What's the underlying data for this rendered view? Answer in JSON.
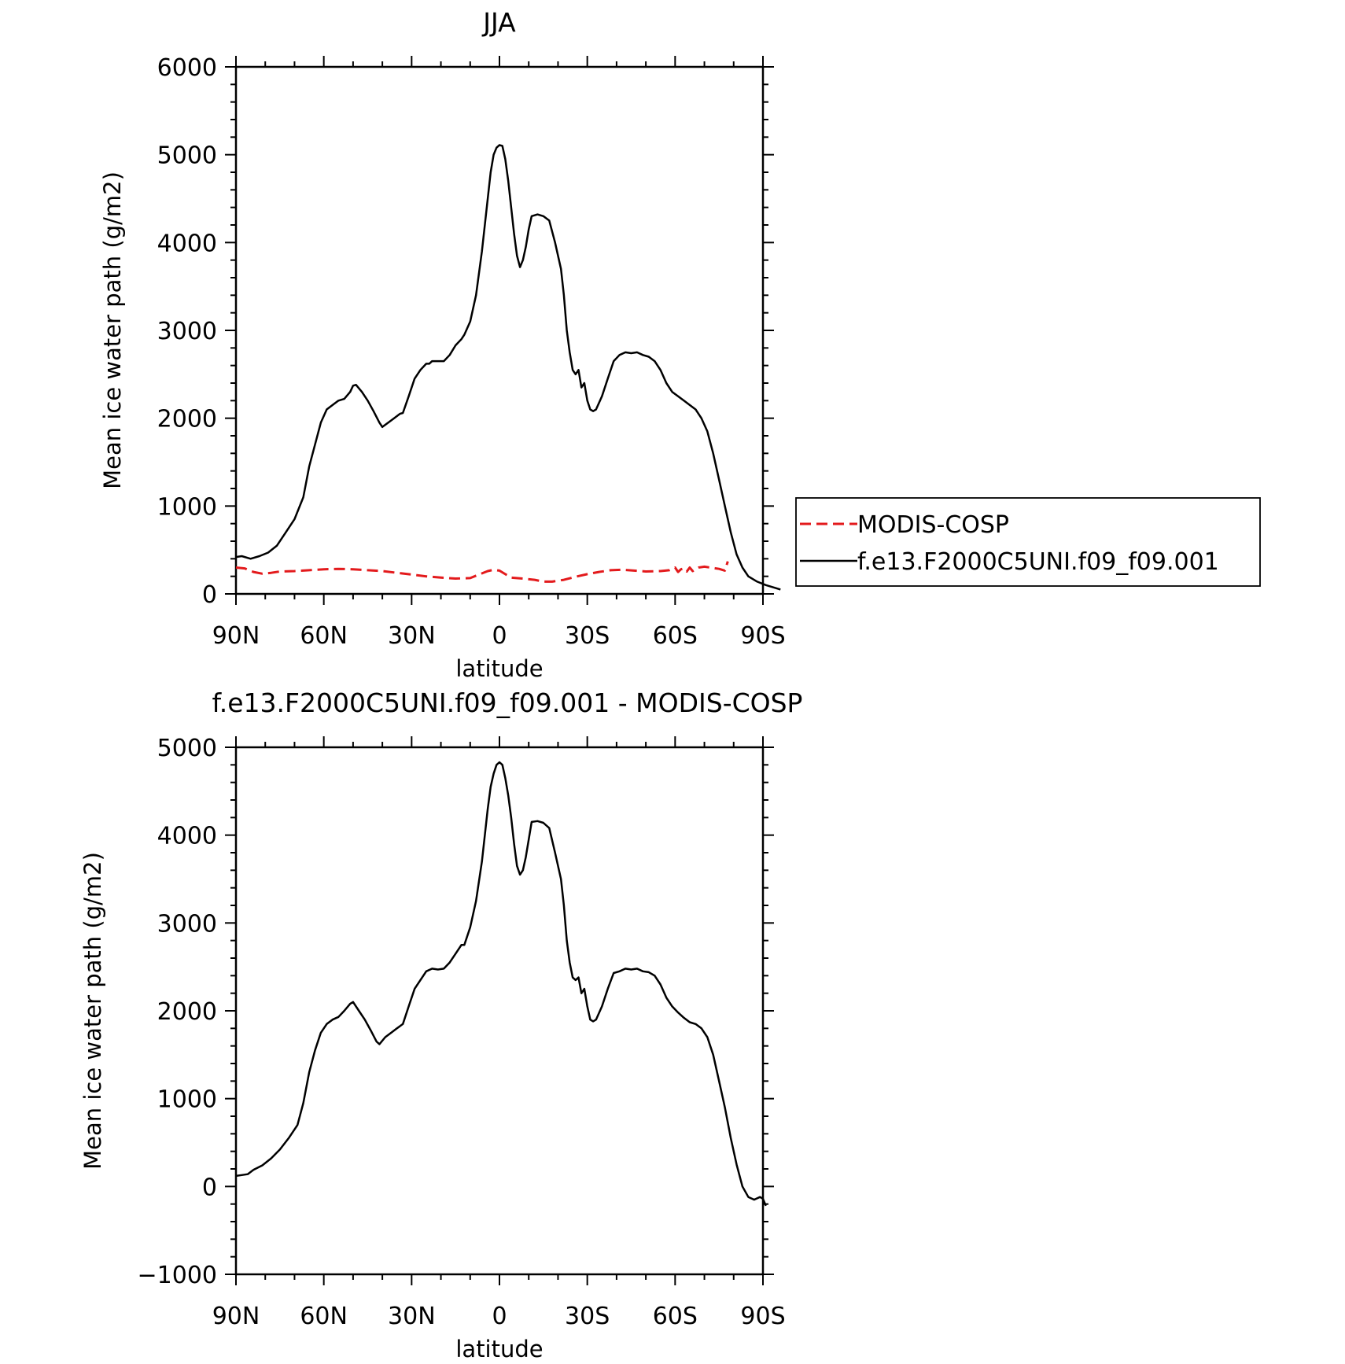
{
  "chart_data": [
    {
      "type": "line",
      "title": "JJA",
      "xlabel": "latitude",
      "ylabel": "Mean ice water path (g/m2)",
      "xlim": [
        90,
        -90
      ],
      "ylim": [
        0,
        6000
      ],
      "x_ticks": [
        90,
        60,
        30,
        0,
        -30,
        -60,
        -90
      ],
      "x_tick_labels": [
        "90N",
        "60N",
        "30N",
        "0",
        "30S",
        "60S",
        "90S"
      ],
      "y_ticks": [
        0,
        1000,
        2000,
        3000,
        4000,
        5000,
        6000
      ],
      "y_tick_labels": [
        "0",
        "1000",
        "2000",
        "3000",
        "4000",
        "5000",
        "6000"
      ],
      "grid": false,
      "legend": "outside-right",
      "series": [
        {
          "name": "MODIS-COSP",
          "color": "#e31a1c",
          "dash": true,
          "points": [
            [
              90,
              300
            ],
            [
              87,
              290
            ],
            [
              84,
              250
            ],
            [
              81,
              230
            ],
            [
              78,
              240
            ],
            [
              75,
              255
            ],
            [
              70,
              260
            ],
            [
              65,
              270
            ],
            [
              60,
              280
            ],
            [
              55,
              285
            ],
            [
              50,
              280
            ],
            [
              45,
              270
            ],
            [
              40,
              260
            ],
            [
              35,
              240
            ],
            [
              30,
              220
            ],
            [
              25,
              200
            ],
            [
              20,
              185
            ],
            [
              15,
              175
            ],
            [
              10,
              180
            ],
            [
              7,
              220
            ],
            [
              4,
              260
            ],
            [
              2,
              275
            ],
            [
              0,
              265
            ],
            [
              -2,
              225
            ],
            [
              -4,
              185
            ],
            [
              -8,
              175
            ],
            [
              -12,
              160
            ],
            [
              -15,
              140
            ],
            [
              -18,
              140
            ],
            [
              -22,
              160
            ],
            [
              -26,
              195
            ],
            [
              -30,
              225
            ],
            [
              -34,
              250
            ],
            [
              -38,
              270
            ],
            [
              -42,
              275
            ],
            [
              -46,
              265
            ],
            [
              -50,
              255
            ],
            [
              -55,
              260
            ],
            [
              -58,
              270
            ],
            [
              -60,
              300
            ],
            [
              -61,
              250
            ],
            [
              -62,
              280
            ],
            [
              -63,
              290
            ],
            [
              -64,
              255
            ],
            [
              -65,
              300
            ],
            [
              -66,
              260
            ],
            [
              -68,
              300
            ],
            [
              -70,
              310
            ],
            [
              -72,
              300
            ],
            [
              -75,
              285
            ],
            [
              -77,
              265
            ],
            [
              -78,
              370
            ]
          ]
        },
        {
          "name": "f.e13.F2000C5UNI.f09_f09.001",
          "color": "#000000",
          "dash": false,
          "points": [
            [
              90,
              420
            ],
            [
              88,
              430
            ],
            [
              85,
              400
            ],
            [
              82,
              430
            ],
            [
              79,
              470
            ],
            [
              76,
              550
            ],
            [
              73,
              700
            ],
            [
              70,
              850
            ],
            [
              67,
              1100
            ],
            [
              65,
              1450
            ],
            [
              63,
              1700
            ],
            [
              61,
              1950
            ],
            [
              59,
              2100
            ],
            [
              57,
              2150
            ],
            [
              55,
              2200
            ],
            [
              53,
              2220
            ],
            [
              51,
              2300
            ],
            [
              50,
              2370
            ],
            [
              49,
              2380
            ],
            [
              47,
              2300
            ],
            [
              45,
              2200
            ],
            [
              43,
              2080
            ],
            [
              41,
              1950
            ],
            [
              40,
              1900
            ],
            [
              38,
              1950
            ],
            [
              36,
              2000
            ],
            [
              34,
              2050
            ],
            [
              33,
              2060
            ],
            [
              31,
              2250
            ],
            [
              29,
              2450
            ],
            [
              27,
              2550
            ],
            [
              25,
              2620
            ],
            [
              24,
              2620
            ],
            [
              23,
              2650
            ],
            [
              21,
              2650
            ],
            [
              19,
              2650
            ],
            [
              17,
              2720
            ],
            [
              15,
              2830
            ],
            [
              13,
              2900
            ],
            [
              12,
              2950
            ],
            [
              10,
              3100
            ],
            [
              8,
              3400
            ],
            [
              6,
              3900
            ],
            [
              5,
              4200
            ],
            [
              4,
              4500
            ],
            [
              3,
              4800
            ],
            [
              2,
              5000
            ],
            [
              1,
              5080
            ],
            [
              0,
              5110
            ],
            [
              -1,
              5100
            ],
            [
              -2,
              4950
            ],
            [
              -3,
              4700
            ],
            [
              -4,
              4400
            ],
            [
              -5,
              4100
            ],
            [
              -6,
              3850
            ],
            [
              -7,
              3720
            ],
            [
              -8,
              3800
            ],
            [
              -9,
              3950
            ],
            [
              -10,
              4150
            ],
            [
              -11,
              4300
            ],
            [
              -13,
              4320
            ],
            [
              -15,
              4300
            ],
            [
              -17,
              4250
            ],
            [
              -19,
              4000
            ],
            [
              -21,
              3700
            ],
            [
              -22,
              3400
            ],
            [
              -23,
              3000
            ],
            [
              -24,
              2750
            ],
            [
              -25,
              2550
            ],
            [
              -26,
              2500
            ],
            [
              -27,
              2550
            ],
            [
              -28,
              2350
            ],
            [
              -29,
              2400
            ],
            [
              -30,
              2200
            ],
            [
              -31,
              2100
            ],
            [
              -32,
              2080
            ],
            [
              -33,
              2100
            ],
            [
              -35,
              2250
            ],
            [
              -37,
              2450
            ],
            [
              -39,
              2650
            ],
            [
              -41,
              2720
            ],
            [
              -43,
              2750
            ],
            [
              -45,
              2740
            ],
            [
              -47,
              2750
            ],
            [
              -49,
              2720
            ],
            [
              -51,
              2700
            ],
            [
              -53,
              2650
            ],
            [
              -55,
              2550
            ],
            [
              -57,
              2400
            ],
            [
              -59,
              2300
            ],
            [
              -61,
              2250
            ],
            [
              -63,
              2200
            ],
            [
              -65,
              2150
            ],
            [
              -67,
              2100
            ],
            [
              -69,
              2000
            ],
            [
              -71,
              1850
            ],
            [
              -73,
              1600
            ],
            [
              -75,
              1300
            ],
            [
              -77,
              1000
            ],
            [
              -79,
              700
            ],
            [
              -81,
              450
            ],
            [
              -83,
              300
            ],
            [
              -85,
              200
            ],
            [
              -88,
              140
            ],
            [
              -91,
              100
            ],
            [
              -94,
              70
            ],
            [
              -96,
              50
            ]
          ]
        }
      ]
    },
    {
      "type": "line",
      "title": "f.e13.F2000C5UNI.f09_f09.001 - MODIS-COSP",
      "xlabel": "latitude",
      "ylabel": "Mean ice water path (g/m2)",
      "xlim": [
        90,
        -90
      ],
      "ylim": [
        -1000,
        5000
      ],
      "x_ticks": [
        90,
        60,
        30,
        0,
        -30,
        -60,
        -90
      ],
      "x_tick_labels": [
        "90N",
        "60N",
        "30N",
        "0",
        "30S",
        "60S",
        "90S"
      ],
      "y_ticks": [
        -1000,
        0,
        1000,
        2000,
        3000,
        4000,
        5000
      ],
      "y_tick_labels": [
        "−1000",
        "0",
        "1000",
        "2000",
        "3000",
        "4000",
        "5000"
      ],
      "grid": false,
      "series": [
        {
          "color": "#000000",
          "dash": false,
          "points": [
            [
              90,
              120
            ],
            [
              88,
              130
            ],
            [
              86,
              140
            ],
            [
              84,
              190
            ],
            [
              81,
              240
            ],
            [
              78,
              320
            ],
            [
              75,
              420
            ],
            [
              72,
              550
            ],
            [
              69,
              700
            ],
            [
              67,
              950
            ],
            [
              65,
              1300
            ],
            [
              63,
              1550
            ],
            [
              61,
              1750
            ],
            [
              59,
              1850
            ],
            [
              57,
              1900
            ],
            [
              55,
              1930
            ],
            [
              53,
              2000
            ],
            [
              51,
              2080
            ],
            [
              50,
              2100
            ],
            [
              48,
              2000
            ],
            [
              46,
              1900
            ],
            [
              44,
              1780
            ],
            [
              42,
              1650
            ],
            [
              41,
              1620
            ],
            [
              39,
              1700
            ],
            [
              37,
              1750
            ],
            [
              35,
              1800
            ],
            [
              33,
              1850
            ],
            [
              31,
              2050
            ],
            [
              29,
              2250
            ],
            [
              27,
              2350
            ],
            [
              25,
              2450
            ],
            [
              23,
              2480
            ],
            [
              21,
              2470
            ],
            [
              19,
              2480
            ],
            [
              17,
              2550
            ],
            [
              15,
              2650
            ],
            [
              13,
              2750
            ],
            [
              12,
              2750
            ],
            [
              10,
              2950
            ],
            [
              8,
              3250
            ],
            [
              6,
              3700
            ],
            [
              5,
              4000
            ],
            [
              4,
              4300
            ],
            [
              3,
              4550
            ],
            [
              2,
              4700
            ],
            [
              1,
              4800
            ],
            [
              0,
              4830
            ],
            [
              -1,
              4800
            ],
            [
              -2,
              4650
            ],
            [
              -3,
              4450
            ],
            [
              -4,
              4200
            ],
            [
              -5,
              3900
            ],
            [
              -6,
              3650
            ],
            [
              -7,
              3550
            ],
            [
              -8,
              3600
            ],
            [
              -9,
              3750
            ],
            [
              -10,
              3950
            ],
            [
              -11,
              4150
            ],
            [
              -13,
              4160
            ],
            [
              -15,
              4140
            ],
            [
              -17,
              4080
            ],
            [
              -19,
              3800
            ],
            [
              -21,
              3500
            ],
            [
              -22,
              3200
            ],
            [
              -23,
              2800
            ],
            [
              -24,
              2550
            ],
            [
              -25,
              2380
            ],
            [
              -26,
              2350
            ],
            [
              -27,
              2380
            ],
            [
              -28,
              2200
            ],
            [
              -29,
              2250
            ],
            [
              -30,
              2050
            ],
            [
              -31,
              1900
            ],
            [
              -32,
              1880
            ],
            [
              -33,
              1900
            ],
            [
              -35,
              2050
            ],
            [
              -37,
              2250
            ],
            [
              -39,
              2430
            ],
            [
              -41,
              2450
            ],
            [
              -43,
              2480
            ],
            [
              -45,
              2470
            ],
            [
              -47,
              2480
            ],
            [
              -49,
              2450
            ],
            [
              -51,
              2440
            ],
            [
              -53,
              2400
            ],
            [
              -55,
              2300
            ],
            [
              -57,
              2150
            ],
            [
              -59,
              2050
            ],
            [
              -61,
              1980
            ],
            [
              -63,
              1920
            ],
            [
              -65,
              1870
            ],
            [
              -67,
              1850
            ],
            [
              -69,
              1800
            ],
            [
              -71,
              1700
            ],
            [
              -73,
              1500
            ],
            [
              -75,
              1200
            ],
            [
              -77,
              900
            ],
            [
              -79,
              550
            ],
            [
              -81,
              250
            ],
            [
              -83,
              0
            ],
            [
              -85,
              -120
            ],
            [
              -87,
              -150
            ],
            [
              -89,
              -120
            ],
            [
              -90,
              -140
            ],
            [
              -91,
              -220
            ]
          ]
        }
      ]
    }
  ]
}
